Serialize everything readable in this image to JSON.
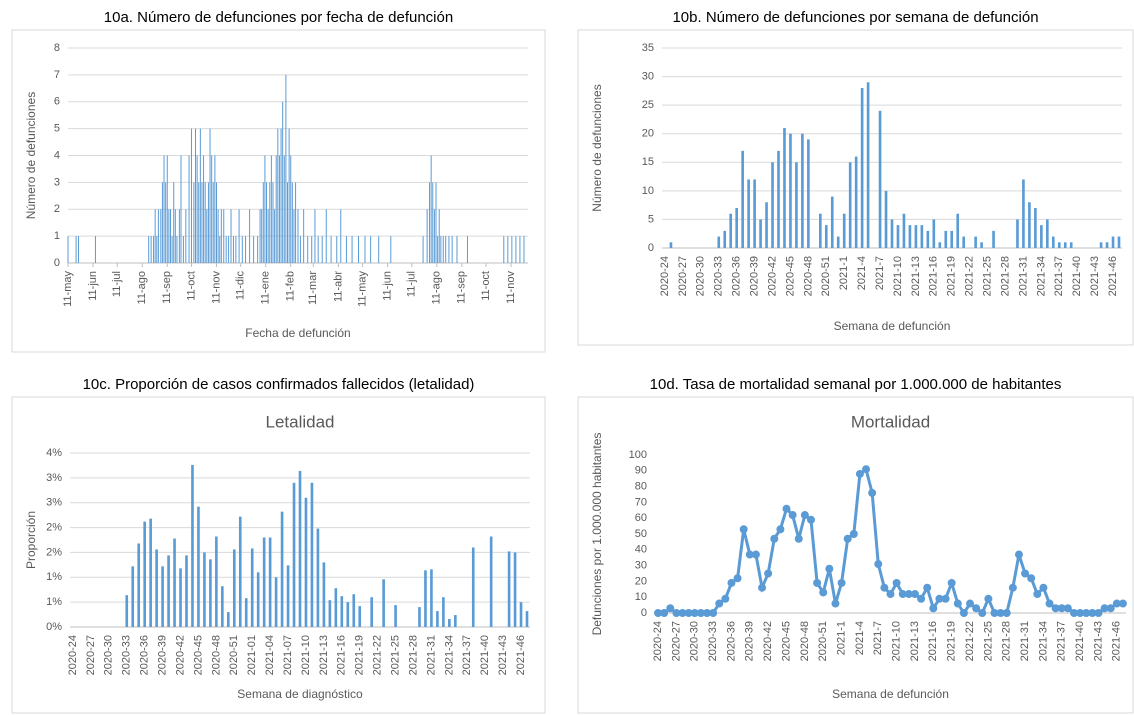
{
  "chart_data": [
    {
      "type": "bar",
      "caption": "10a. Número de defunciones por fecha de defunción",
      "x_label": "Fecha de defunción",
      "y_label": "Número de defunciones",
      "color": "#5b9bd5",
      "grid": true,
      "xlim": [
        0,
        570
      ],
      "xticks": [
        {
          "value": 0,
          "label": "11-may"
        },
        {
          "value": 31,
          "label": "11-jun"
        },
        {
          "value": 61,
          "label": "11-jul"
        },
        {
          "value": 92,
          "label": "11-ago"
        },
        {
          "value": 123,
          "label": "11-sep"
        },
        {
          "value": 153,
          "label": "11-oct"
        },
        {
          "value": 184,
          "label": "11-nov"
        },
        {
          "value": 214,
          "label": "11-dic"
        },
        {
          "value": 245,
          "label": "11-ene"
        },
        {
          "value": 276,
          "label": "11-feb"
        },
        {
          "value": 304,
          "label": "11-mar"
        },
        {
          "value": 335,
          "label": "11-abr"
        },
        {
          "value": 365,
          "label": "11-may"
        },
        {
          "value": 396,
          "label": "11-jun"
        },
        {
          "value": 426,
          "label": "11-jul"
        },
        {
          "value": 457,
          "label": "11-ago"
        },
        {
          "value": 488,
          "label": "11-sep"
        },
        {
          "value": 518,
          "label": "11-oct"
        },
        {
          "value": 549,
          "label": "11-nov"
        }
      ],
      "ylim": [
        0,
        8
      ],
      "yticks": [
        0,
        1,
        2,
        3,
        4,
        5,
        6,
        7,
        8
      ],
      "x": [
        0,
        10,
        13,
        34,
        100,
        103,
        106,
        108,
        110,
        112,
        115,
        117,
        119,
        121,
        123,
        125,
        127,
        129,
        131,
        133,
        135,
        138,
        140,
        143,
        146,
        150,
        153,
        156,
        158,
        160,
        162,
        164,
        166,
        168,
        170,
        172,
        174,
        176,
        178,
        180,
        182,
        184,
        186,
        188,
        190,
        193,
        196,
        199,
        202,
        205,
        208,
        212,
        216,
        220,
        225,
        230,
        235,
        238,
        240,
        242,
        244,
        246,
        248,
        250,
        252,
        254,
        256,
        258,
        260,
        262,
        264,
        266,
        268,
        270,
        272,
        274,
        276,
        278,
        280,
        282,
        285,
        288,
        292,
        297,
        302,
        306,
        310,
        315,
        320,
        326,
        333,
        338,
        345,
        352,
        360,
        368,
        375,
        385,
        400,
        440,
        445,
        448,
        450,
        452,
        454,
        456,
        458,
        460,
        462,
        465,
        468,
        472,
        476,
        482,
        495,
        540,
        545,
        550,
        555,
        560,
        565
      ],
      "values": [
        1,
        1,
        1,
        1,
        1,
        1,
        1,
        2,
        1,
        2,
        2,
        3,
        4,
        3,
        4,
        2,
        2,
        1,
        3,
        2,
        1,
        2,
        4,
        1,
        2,
        4,
        5,
        3,
        5,
        4,
        3,
        5,
        3,
        4,
        3,
        2,
        3,
        5,
        4,
        3,
        4,
        3,
        2,
        1,
        2,
        2,
        1,
        1,
        2,
        1,
        1,
        2,
        1,
        1,
        2,
        1,
        1,
        2,
        2,
        3,
        4,
        3,
        2,
        3,
        4,
        3,
        2,
        4,
        5,
        4,
        5,
        6,
        4,
        7,
        3,
        5,
        4,
        3,
        2,
        3,
        2,
        1,
        2,
        1,
        1,
        2,
        1,
        1,
        2,
        1,
        1,
        2,
        1,
        1,
        1,
        1,
        1,
        1,
        1,
        1,
        2,
        3,
        4,
        3,
        2,
        3,
        1,
        2,
        1,
        1,
        1,
        1,
        1,
        1,
        1,
        1,
        1,
        1,
        1,
        1,
        1
      ]
    },
    {
      "type": "bar",
      "caption": "10b. Número de defunciones por semana de defunción",
      "x_label": "Semana de defunción",
      "y_label": "Número de defunciones",
      "color": "#5b9bd5",
      "grid": true,
      "ylim": [
        0,
        35
      ],
      "yticks": [
        0,
        5,
        10,
        15,
        20,
        25,
        30,
        35
      ],
      "categories": [
        "2020-24",
        null,
        null,
        "2020-27",
        null,
        null,
        "2020-30",
        null,
        null,
        "2020-33",
        null,
        null,
        "2020-36",
        null,
        null,
        "2020-39",
        null,
        null,
        "2020-42",
        null,
        null,
        "2020-45",
        null,
        null,
        "2020-48",
        null,
        null,
        "2020-51",
        null,
        null,
        "2021-1",
        null,
        null,
        "2021-4",
        null,
        null,
        "2021-7",
        null,
        null,
        "2021-10",
        null,
        null,
        "2021-13",
        null,
        null,
        "2021-16",
        null,
        null,
        "2021-19",
        null,
        null,
        "2021-22",
        null,
        null,
        "2021-25",
        null,
        null,
        "2021-28",
        null,
        null,
        "2021-31",
        null,
        null,
        "2021-34",
        null,
        null,
        "2021-37",
        null,
        null,
        "2021-40",
        null,
        null,
        "2021-43",
        null,
        null,
        "2021-46",
        null
      ],
      "values": [
        0,
        1,
        0,
        0,
        0,
        0,
        0,
        0,
        0,
        2,
        3,
        6,
        7,
        17,
        12,
        12,
        5,
        8,
        15,
        17,
        21,
        20,
        15,
        20,
        19,
        0,
        6,
        4,
        9,
        2,
        6,
        15,
        16,
        28,
        29,
        0,
        24,
        10,
        5,
        4,
        6,
        4,
        4,
        4,
        3,
        5,
        1,
        3,
        3,
        6,
        2,
        0,
        2,
        1,
        0,
        3,
        0,
        0,
        0,
        5,
        12,
        8,
        7,
        4,
        5,
        2,
        1,
        1,
        1,
        0,
        0,
        0,
        0,
        1,
        1,
        2,
        2
      ]
    },
    {
      "type": "bar",
      "caption": "10c. Proporción de casos confirmados fallecidos (letalidad)",
      "title": "Letalidad",
      "x_label": "Semana de diagnóstico",
      "y_label": "Proporción",
      "color": "#5b9bd5",
      "grid": true,
      "ylim": [
        0,
        3.5
      ],
      "yticks": [
        {
          "value": 0,
          "label": "0%"
        },
        {
          "value": 0.5,
          "label": "1%"
        },
        {
          "value": 1,
          "label": "1%"
        },
        {
          "value": 1.5,
          "label": "2%"
        },
        {
          "value": 2,
          "label": "2%"
        },
        {
          "value": 2.5,
          "label": "3%"
        },
        {
          "value": 3,
          "label": "3%"
        },
        {
          "value": 3.5,
          "label": "4%"
        }
      ],
      "categories": [
        "2020-24",
        null,
        null,
        "2020-27",
        null,
        null,
        "2020-30",
        null,
        null,
        "2020-33",
        null,
        null,
        "2020-36",
        null,
        null,
        "2020-39",
        null,
        null,
        "2020-42",
        null,
        null,
        "2020-45",
        null,
        null,
        "2020-48",
        null,
        null,
        "2020-51",
        null,
        null,
        "2021-01",
        null,
        null,
        "2021-04",
        null,
        null,
        "2021-07",
        null,
        null,
        "2021-10",
        null,
        null,
        "2021-13",
        null,
        null,
        "2021-16",
        null,
        null,
        "2021-19",
        null,
        null,
        "2021-22",
        null,
        null,
        "2021-25",
        null,
        null,
        "2021-28",
        null,
        null,
        "2021-31",
        null,
        null,
        "2021-34",
        null,
        null,
        "2021-37",
        null,
        null,
        "2021-40",
        null,
        null,
        "2021-43",
        null,
        null,
        "2021-46",
        null
      ],
      "values": [
        0,
        0,
        0,
        0,
        0,
        0,
        0,
        0,
        0,
        0.64,
        1.22,
        1.68,
        2.12,
        2.18,
        1.56,
        1.22,
        1.44,
        1.78,
        1.18,
        1.44,
        3.26,
        2.42,
        1.5,
        1.36,
        1.82,
        0.82,
        0.3,
        1.56,
        2.22,
        0.58,
        1.58,
        1.1,
        1.8,
        1.8,
        1.0,
        2.32,
        1.24,
        2.9,
        3.14,
        2.6,
        2.9,
        1.98,
        1.3,
        0.54,
        0.78,
        0.62,
        0.5,
        0.66,
        0.42,
        0,
        0.6,
        0,
        0.96,
        0,
        0.44,
        0,
        0,
        0,
        0.4,
        1.14,
        1.16,
        0.32,
        0.6,
        0.16,
        0.24,
        0,
        0,
        1.6,
        0,
        0,
        1.82,
        0,
        0,
        1.52,
        1.5,
        0.5,
        0.32
      ]
    },
    {
      "type": "line",
      "caption": "10d. Tasa de mortalidad semanal por 1.000.000 de habitantes",
      "title": "Mortalidad",
      "x_label": "Semana de defunción",
      "y_label": "Defunciones por 1.000.000 habitantes",
      "color": "#5b9bd5",
      "grid": false,
      "ylim": [
        0,
        100
      ],
      "yticks": [
        0,
        10,
        20,
        30,
        40,
        50,
        60,
        70,
        80,
        90,
        100
      ],
      "categories": [
        "2020-24",
        null,
        null,
        "2020-27",
        null,
        null,
        "2020-30",
        null,
        null,
        "2020-33",
        null,
        null,
        "2020-36",
        null,
        null,
        "2020-39",
        null,
        null,
        "2020-42",
        null,
        null,
        "2020-45",
        null,
        null,
        "2020-48",
        null,
        null,
        "2020-51",
        null,
        null,
        "2021-1",
        null,
        null,
        "2021-4",
        null,
        null,
        "2021-7",
        null,
        null,
        "2021-10",
        null,
        null,
        "2021-13",
        null,
        null,
        "2021-16",
        null,
        null,
        "2021-19",
        null,
        null,
        "2021-22",
        null,
        null,
        "2021-25",
        null,
        null,
        "2021-28",
        null,
        null,
        "2021-31",
        null,
        null,
        "2021-34",
        null,
        null,
        "2021-37",
        null,
        null,
        "2021-40",
        null,
        null,
        "2021-43",
        null,
        null,
        "2021-46",
        null
      ],
      "values": [
        0,
        0,
        3,
        0,
        0,
        0,
        0,
        0,
        0,
        0,
        6,
        9,
        19,
        22,
        53,
        37,
        37,
        16,
        25,
        47,
        53,
        66,
        62,
        47,
        62,
        59,
        19,
        13,
        28,
        6,
        19,
        47,
        50,
        88,
        91,
        76,
        31,
        16,
        12,
        19,
        12,
        12,
        12,
        9,
        16,
        3,
        9,
        9,
        19,
        6,
        0,
        6,
        3,
        0,
        9,
        0,
        0,
        0,
        16,
        37,
        25,
        22,
        12,
        16,
        6,
        3,
        3,
        3,
        0,
        0,
        0,
        0,
        0,
        3,
        3,
        6,
        6
      ]
    }
  ]
}
